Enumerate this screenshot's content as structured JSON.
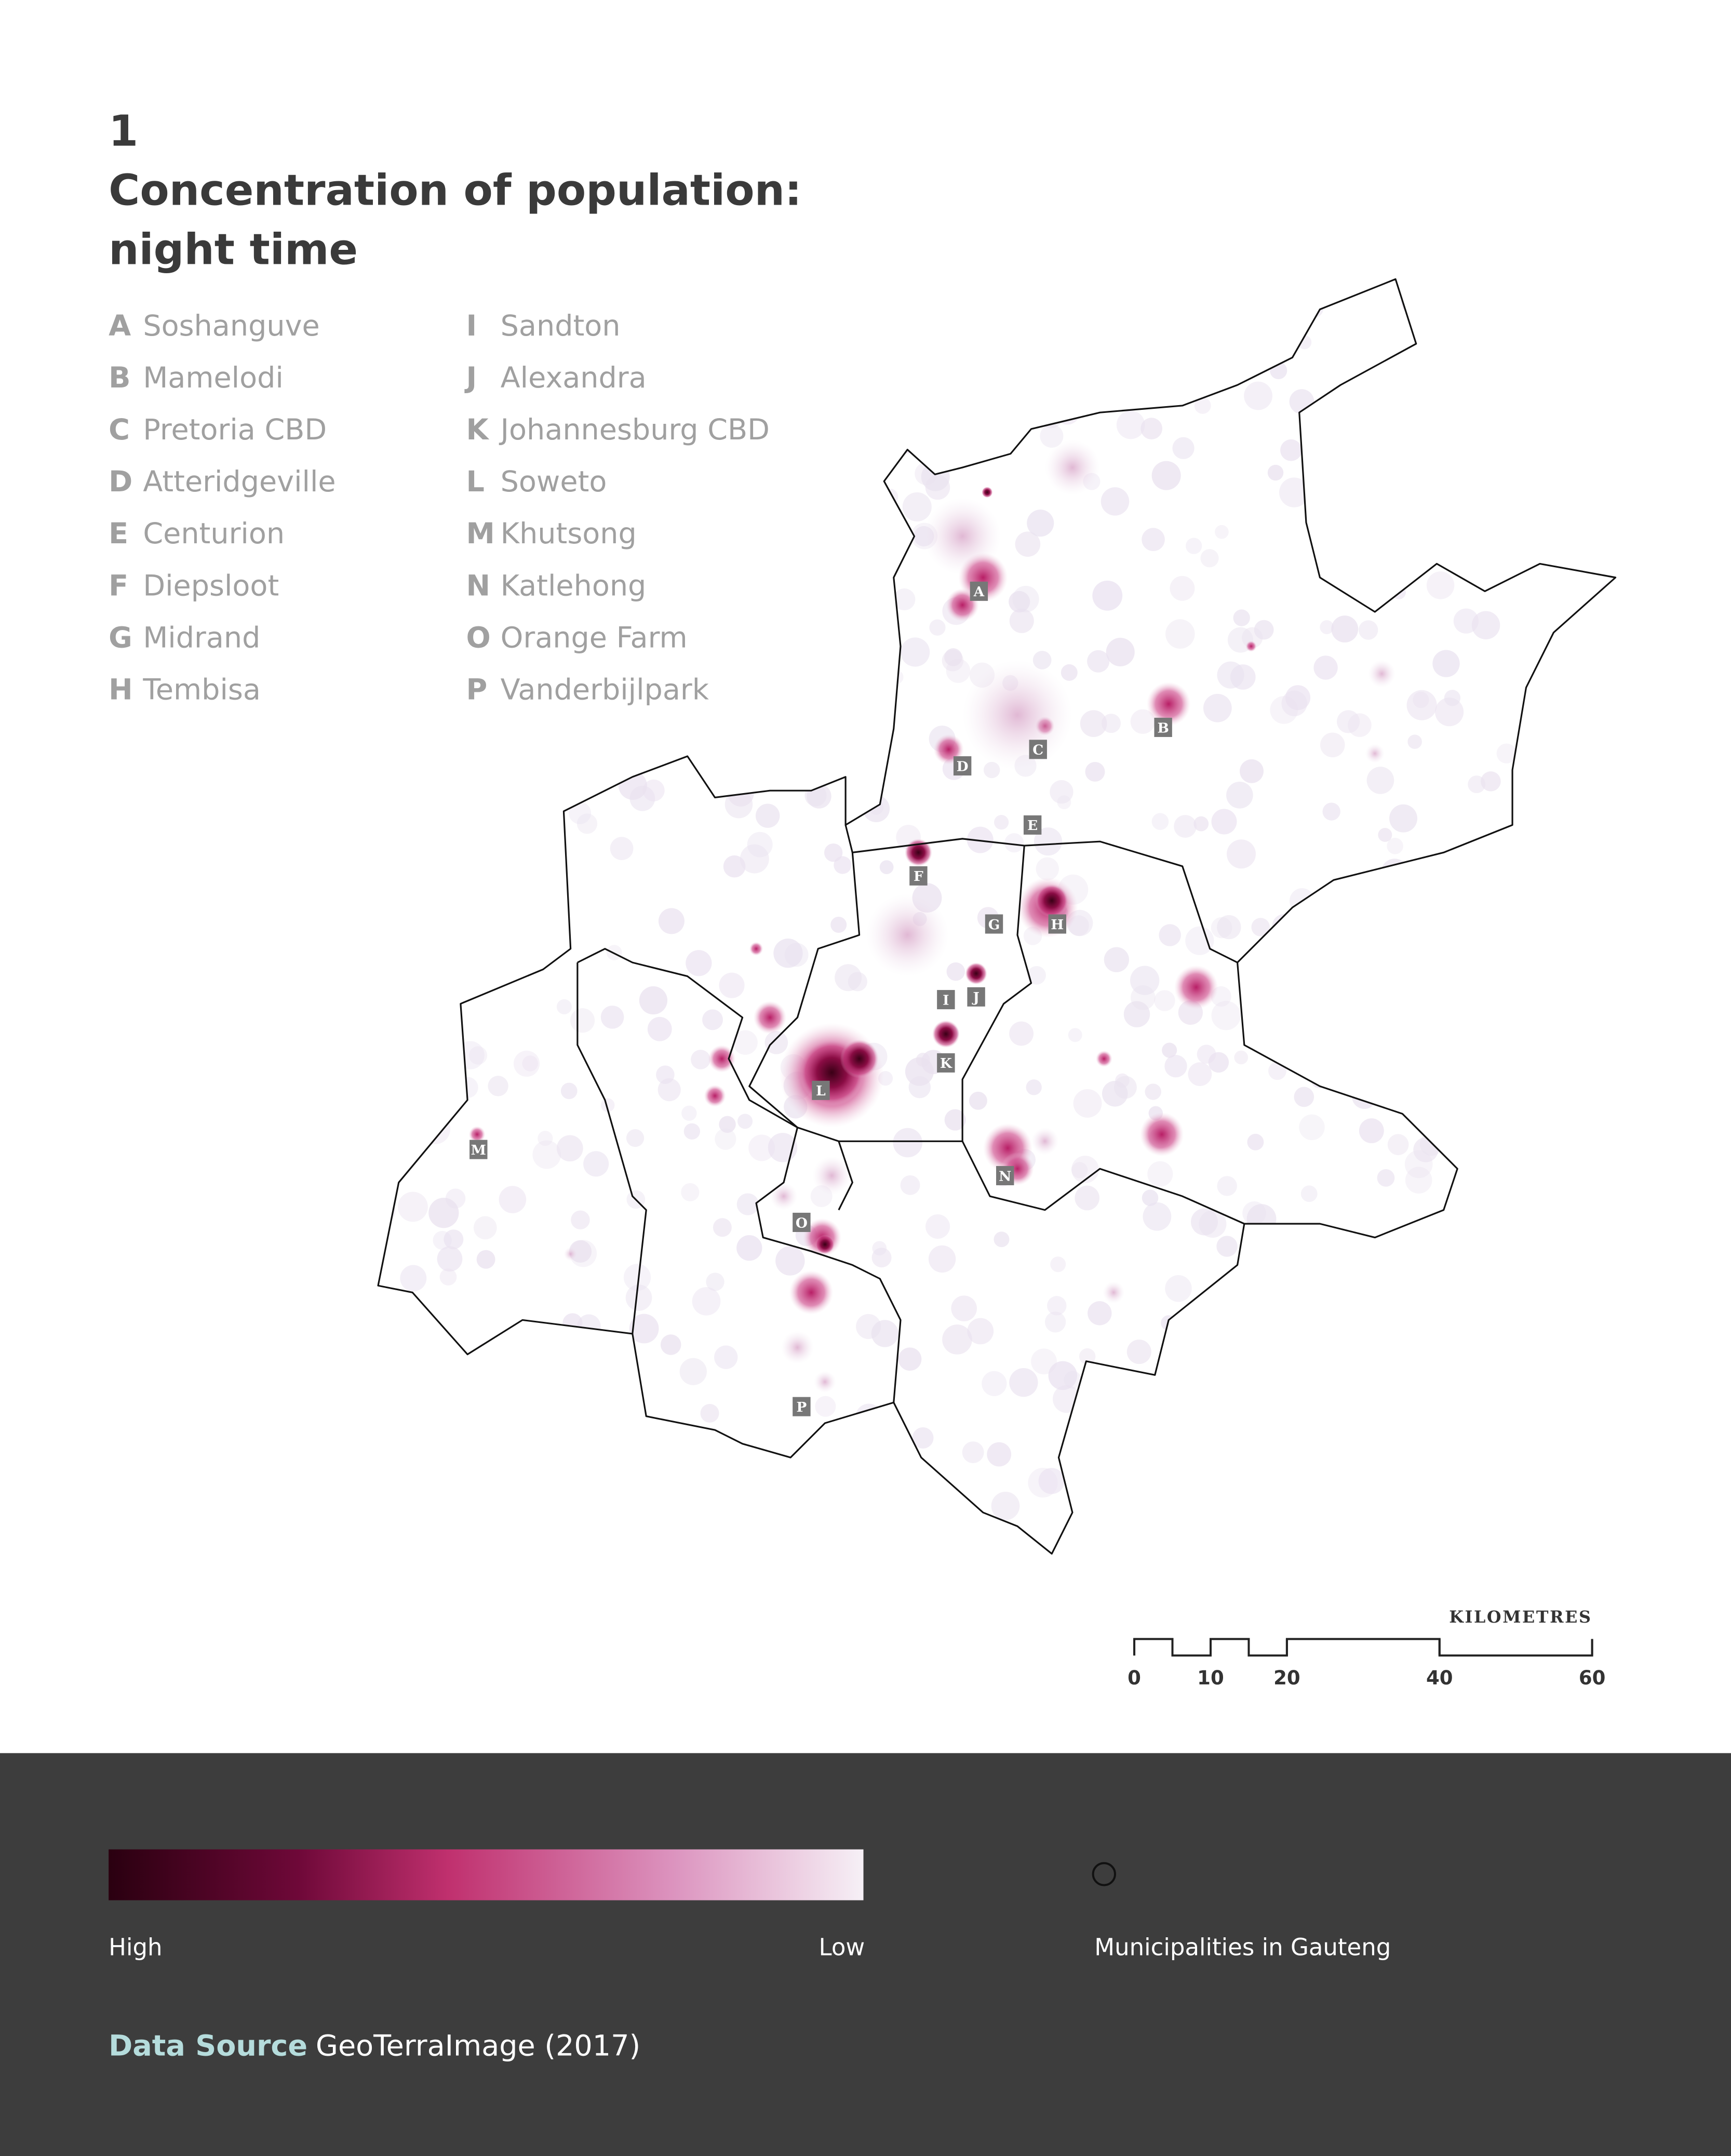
{
  "header": {
    "number": "1",
    "title_lines": [
      "Concentration of population:",
      "night time"
    ]
  },
  "legend": {
    "items": [
      {
        "letter": "A",
        "name": "Soshanguve"
      },
      {
        "letter": "B",
        "name": "Mamelodi"
      },
      {
        "letter": "C",
        "name": "Pretoria CBD"
      },
      {
        "letter": "D",
        "name": "Atteridgeville"
      },
      {
        "letter": "E",
        "name": "Centurion"
      },
      {
        "letter": "F",
        "name": "Diepsloot"
      },
      {
        "letter": "G",
        "name": "Midrand"
      },
      {
        "letter": "H",
        "name": "Tembisa"
      },
      {
        "letter": "I",
        "name": "Sandton"
      },
      {
        "letter": "J",
        "name": "Alexandra"
      },
      {
        "letter": "K",
        "name": "Johannesburg CBD"
      },
      {
        "letter": "L",
        "name": "Soweto"
      },
      {
        "letter": "M",
        "name": "Khutsong"
      },
      {
        "letter": "N",
        "name": "Katlehong"
      },
      {
        "letter": "O",
        "name": "Orange Farm"
      },
      {
        "letter": "P",
        "name": "Vanderbijlpark"
      }
    ]
  },
  "scale": {
    "label": "KILOMETRES",
    "ticks": [
      0,
      10,
      20,
      40,
      60
    ]
  },
  "color_legend": {
    "high": "High",
    "low": "Low"
  },
  "boundary_legend": "Municipalities in Gauteng",
  "source": {
    "label": "Data Source",
    "text": "GeoTerraImage (2017)"
  }
}
